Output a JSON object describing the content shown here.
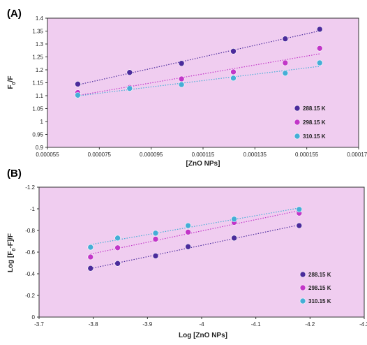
{
  "colors": {
    "plot_bg": "#f0cdf0",
    "frame": "#333333",
    "s288": "#4b2b9c",
    "s298": "#c236c8",
    "s310": "#45aed6"
  },
  "chart_data": [
    {
      "type": "scatter",
      "panel_label": "(A)",
      "xlabel": "[ZnO NPs]",
      "ylabel": "F0/F",
      "xlim": [
        5.5e-05,
        0.000175
      ],
      "ylim": [
        0.9,
        1.4
      ],
      "x_ticks": [
        5.5e-05,
        7.5e-05,
        9.5e-05,
        0.000115,
        0.000135,
        0.000155,
        0.000175
      ],
      "x_tick_labels": [
        "0.000055",
        "0.000075",
        "0.000095",
        "0.000115",
        "0.000135",
        "0.000155",
        "0.000175"
      ],
      "y_ticks": [
        0.9,
        0.95,
        1.0,
        1.05,
        1.1,
        1.15,
        1.2,
        1.25,
        1.3,
        1.35,
        1.4
      ],
      "y_tick_labels": [
        "0.9",
        "0.95",
        "1",
        "1.05",
        "1.1",
        "1.15",
        "1.2",
        "1.25",
        "1.3",
        "1.35",
        "1.4"
      ],
      "legend_position": "bottom-right",
      "series": [
        {
          "name": "288.15 K",
          "color_key": "s288",
          "x": [
            6.67e-05,
            8.67e-05,
            0.0001067,
            0.0001267,
            0.0001467,
            0.00016
          ],
          "y": [
            1.145,
            1.19,
            1.225,
            1.272,
            1.32,
            1.357
          ]
        },
        {
          "name": "298.15 K",
          "color_key": "s298",
          "x": [
            6.67e-05,
            8.67e-05,
            0.0001067,
            0.0001267,
            0.0001467,
            0.00016
          ],
          "y": [
            1.112,
            1.132,
            1.165,
            1.192,
            1.227,
            1.283
          ]
        },
        {
          "name": "310.15 K",
          "color_key": "s310",
          "x": [
            6.67e-05,
            8.67e-05,
            0.0001067,
            0.0001267,
            0.0001467,
            0.00016
          ],
          "y": [
            1.102,
            1.128,
            1.143,
            1.168,
            1.187,
            1.227
          ]
        }
      ]
    },
    {
      "type": "scatter",
      "panel_label": "(B)",
      "xlabel": "Log [ZnO NPs]",
      "ylabel": "Log [F0-F]/F",
      "xlim": [
        -3.7,
        -4.3
      ],
      "ylim": [
        0,
        -1.2
      ],
      "x_ticks": [
        -3.7,
        -3.8,
        -3.9,
        -4.0,
        -4.1,
        -4.2,
        -4.3
      ],
      "x_tick_labels": [
        "-3.7",
        "-3.8",
        "-3.9",
        "-4",
        "-4.1",
        "-4.2",
        "-4.3"
      ],
      "y_ticks": [
        0,
        -0.2,
        -0.4,
        -0.6,
        -0.8,
        -1.0,
        -1.2
      ],
      "y_tick_labels": [
        "0",
        "-0.2",
        "-0.4",
        "-0.6",
        "-0.8",
        "-1",
        "-1.2"
      ],
      "legend_position": "bottom-right",
      "series": [
        {
          "name": "288.15 K",
          "color_key": "s288",
          "x": [
            -3.795,
            -3.845,
            -3.915,
            -3.975,
            -4.06,
            -4.18
          ],
          "y": [
            -0.45,
            -0.495,
            -0.565,
            -0.65,
            -0.73,
            -0.845
          ]
        },
        {
          "name": "298.15 K",
          "color_key": "s298",
          "x": [
            -3.795,
            -3.845,
            -3.915,
            -3.975,
            -4.06,
            -4.18
          ],
          "y": [
            -0.555,
            -0.64,
            -0.72,
            -0.785,
            -0.875,
            -0.96
          ]
        },
        {
          "name": "310.15 K",
          "color_key": "s310",
          "x": [
            -3.795,
            -3.845,
            -3.915,
            -3.975,
            -4.06,
            -4.18
          ],
          "y": [
            -0.645,
            -0.73,
            -0.775,
            -0.845,
            -0.905,
            -0.995
          ]
        }
      ]
    }
  ]
}
